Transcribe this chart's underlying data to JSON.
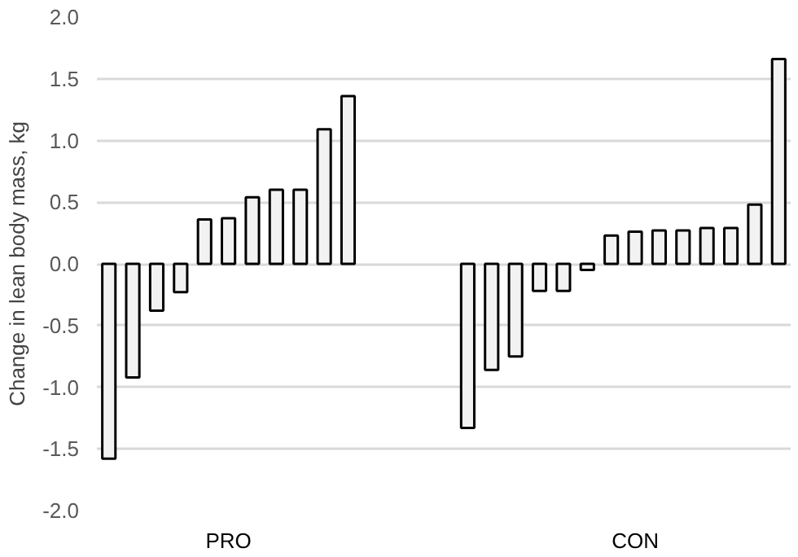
{
  "chart_data": {
    "type": "bar",
    "ylabel": "Change in lean body mass, kg",
    "categories": [
      null,
      null,
      null,
      null,
      null,
      "PRO",
      null,
      null,
      null,
      null,
      null,
      null,
      null,
      null,
      null,
      null,
      null,
      null,
      null,
      null,
      null,
      null,
      "CON",
      null,
      null,
      null,
      null,
      null,
      null
    ],
    "values": [
      -1.58,
      -0.92,
      -0.38,
      -0.23,
      0.36,
      0.37,
      0.54,
      0.6,
      0.6,
      1.09,
      1.36,
      null,
      null,
      null,
      null,
      -1.33,
      -0.86,
      -0.75,
      -0.22,
      -0.22,
      -0.05,
      0.23,
      0.26,
      0.27,
      0.27,
      0.29,
      0.29,
      0.48,
      1.66
    ],
    "color": "#f2f2f2",
    "ylim": [
      -2.0,
      2.0
    ],
    "yticks": [
      {
        "value": -2.0,
        "label": "-2.0"
      },
      {
        "value": -1.5,
        "label": "-1.5"
      },
      {
        "value": -1.0,
        "label": "-1.0"
      },
      {
        "value": -0.5,
        "label": "-0.5"
      },
      {
        "value": 0.0,
        "label": "0.0"
      },
      {
        "value": 0.5,
        "label": "0.5"
      },
      {
        "value": 1.0,
        "label": "1.0"
      },
      {
        "value": 1.5,
        "label": "1.5"
      },
      {
        "value": 2.0,
        "label": "2.0"
      }
    ],
    "grid": "y"
  }
}
